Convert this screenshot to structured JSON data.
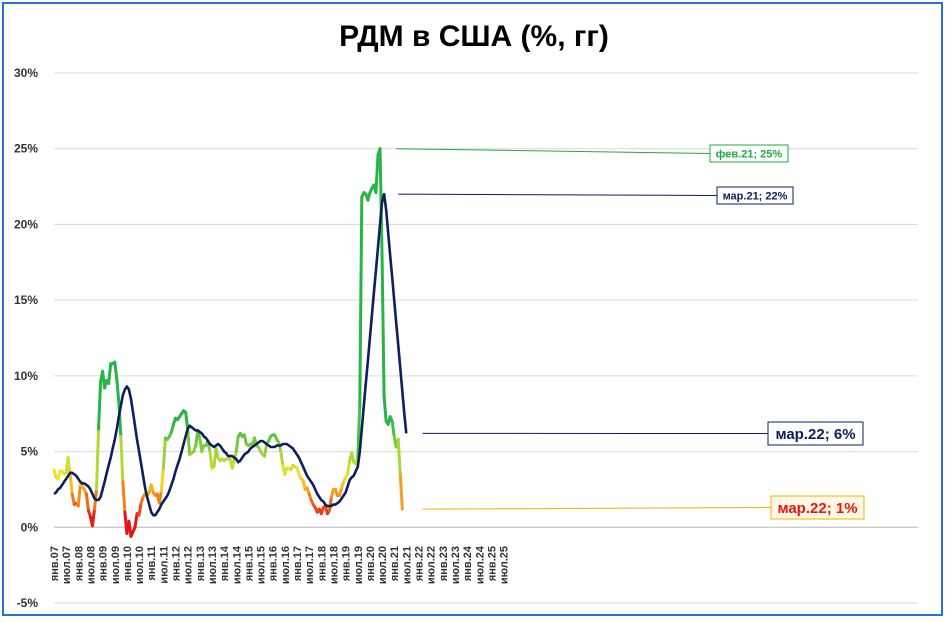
{
  "chart_data": {
    "type": "line",
    "title": "РДМ в США (%, гг)",
    "ylim": [
      -5,
      30
    ],
    "yticks": [
      "-5%",
      "0%",
      "5%",
      "10%",
      "15%",
      "20%",
      "25%",
      "30%"
    ],
    "ytick_values": [
      -5,
      0,
      5,
      10,
      15,
      20,
      25,
      30
    ],
    "grid": true,
    "xticks": [
      "янв.07",
      "июл.07",
      "янв.08",
      "июл.08",
      "янв.09",
      "июл.09",
      "янв.10",
      "июл.10",
      "янв.11",
      "июл.11",
      "янв.12",
      "июл.12",
      "янв.13",
      "июл.13",
      "янв.14",
      "июл.14",
      "янв.15",
      "июл.15",
      "янв.16",
      "июл.16",
      "янв.17",
      "июл.17",
      "янв.18",
      "июл.18",
      "янв.19",
      "июл.19",
      "янв.20",
      "июл.20",
      "янв.21",
      "июл.21",
      "янв.22",
      "июл.22",
      "янв.23",
      "июл.23",
      "янв.24",
      "июл.24",
      "янв.25",
      "июл.25"
    ],
    "series": [
      {
        "color": "#22aa44",
        "note": "monthly values, starting янв.07, multicolored by level (red low → green high)",
        "values": [
          3.8,
          3.3,
          3.2,
          3.7,
          3.7,
          3.5,
          3.6,
          4.6,
          3.4,
          2.2,
          1.5,
          1.6,
          1.4,
          2.8,
          2.7,
          2.5,
          2.2,
          1.1,
          0.7,
          0.1,
          1.2,
          2.5,
          6.5,
          9.6,
          10.3,
          9.2,
          9.7,
          9.5,
          10.8,
          10.8,
          10.9,
          9.8,
          8.3,
          6.0,
          3.0,
          1.0,
          -0.4,
          0.4,
          -0.6,
          -0.3,
          0.0,
          0.9,
          0.8,
          1.6,
          2.0,
          2.2,
          2.1,
          2.3,
          2.8,
          2.3,
          2.1,
          2.2,
          1.6,
          2.4,
          3.9,
          5.9,
          5.8,
          6.0,
          6.3,
          6.8,
          7.2,
          7.1,
          7.3,
          7.5,
          7.7,
          7.6,
          6.5,
          4.8,
          4.9,
          5.0,
          5.4,
          6.3,
          5.9,
          5.0,
          5.4,
          5.4,
          5.7,
          5.0,
          3.9,
          4.0,
          5.2,
          4.6,
          4.4,
          4.5,
          4.4,
          4.5,
          4.5,
          4.5,
          3.9,
          4.4,
          5.0,
          6.0,
          6.2,
          6.0,
          6.1,
          5.5,
          5.4,
          5.5,
          5.4,
          5.9,
          5.4,
          5.3,
          5.0,
          4.8,
          4.7,
          5.5,
          5.7,
          6.0,
          6.1,
          6.1,
          5.8,
          5.6,
          5.0,
          4.1,
          3.5,
          3.9,
          3.9,
          3.8,
          4.1,
          4.0,
          3.9,
          3.5,
          3.2,
          3.1,
          2.5,
          2.6,
          2.2,
          1.8,
          1.5,
          1.3,
          1.0,
          1.2,
          0.9,
          1.3,
          1.4,
          0.9,
          1.1,
          2.0,
          2.5,
          2.5,
          2.1,
          2.1,
          2.6,
          3.0,
          3.3,
          3.5,
          4.4,
          4.9,
          4.3,
          4.2,
          4.6,
          8.0,
          21.8,
          22.1,
          22.0,
          21.6,
          22.1,
          22.4,
          22.6,
          22.1,
          24.6,
          25.0,
          18.0,
          8.7,
          7.0,
          6.8,
          7.3,
          7.0,
          6.0,
          5.3,
          5.8,
          3.5,
          1.2
        ]
      },
      {
        "color": "#0d1f5c",
        "note": "monthly values, starting янв.07 (12-month moving average)",
        "values": [
          2.2,
          2.3,
          2.5,
          2.6,
          2.8,
          3.0,
          3.2,
          3.4,
          3.6,
          3.6,
          3.5,
          3.4,
          3.2,
          3.0,
          2.9,
          2.9,
          2.8,
          2.7,
          2.5,
          2.2,
          1.9,
          1.8,
          1.8,
          2.0,
          2.5,
          3.0,
          3.6,
          4.1,
          4.6,
          5.2,
          5.8,
          6.5,
          7.3,
          8.0,
          8.7,
          9.1,
          9.3,
          9.1,
          8.5,
          7.6,
          6.7,
          5.8,
          5.0,
          4.2,
          3.4,
          2.6,
          2.0,
          1.5,
          1.0,
          0.8,
          0.8,
          1.0,
          1.2,
          1.5,
          1.7,
          1.9,
          2.1,
          2.4,
          2.8,
          3.2,
          3.7,
          4.1,
          4.5,
          5.0,
          5.5,
          6.0,
          6.5,
          6.7,
          6.6,
          6.5,
          6.4,
          6.4,
          6.3,
          6.2,
          6.0,
          5.9,
          5.7,
          5.5,
          5.4,
          5.3,
          5.4,
          5.5,
          5.4,
          5.2,
          5.0,
          4.9,
          4.7,
          4.7,
          4.7,
          4.6,
          4.5,
          4.3,
          4.4,
          4.6,
          4.8,
          4.9,
          5.0,
          5.2,
          5.3,
          5.4,
          5.5,
          5.6,
          5.7,
          5.7,
          5.6,
          5.5,
          5.4,
          5.3,
          5.3,
          5.3,
          5.4,
          5.4,
          5.4,
          5.5,
          5.5,
          5.5,
          5.4,
          5.3,
          5.2,
          5.0,
          4.8,
          4.6,
          4.3,
          4.0,
          3.7,
          3.4,
          3.2,
          3.0,
          2.8,
          2.5,
          2.2,
          2.0,
          1.8,
          1.7,
          1.5,
          1.4,
          1.4,
          1.4,
          1.5,
          1.5,
          1.6,
          1.7,
          1.9,
          2.1,
          2.3,
          2.7,
          3.1,
          3.3,
          3.4,
          3.7,
          4.0,
          5.0,
          6.5,
          8.0,
          9.5,
          11.0,
          12.5,
          14.0,
          15.5,
          17.0,
          18.5,
          20.0,
          21.5,
          22.0,
          21.0,
          19.5,
          18.0,
          16.5,
          15.0,
          13.5,
          12.0,
          10.5,
          9.0,
          7.5,
          6.2
        ]
      }
    ],
    "annotations": [
      {
        "text": "фев.21; 25%",
        "color": "#22aa44"
      },
      {
        "text": "мар.21; 22%",
        "color": "#0d1f5c"
      },
      {
        "text": "мар.22; 6%",
        "color": "#0d1f5c"
      },
      {
        "text": "мар.22; 1%",
        "color": "#ee1111"
      }
    ]
  }
}
